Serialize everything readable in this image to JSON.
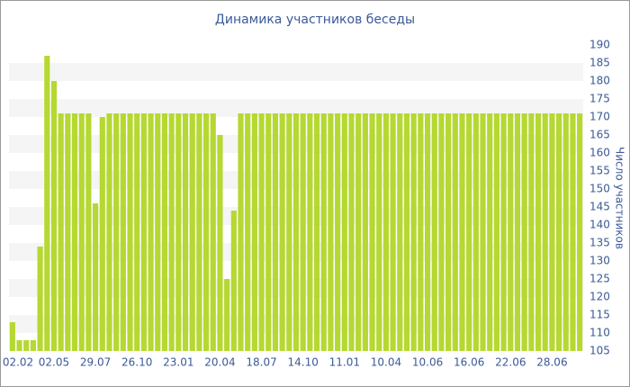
{
  "chart_data": {
    "type": "bar",
    "title": "Динамика участников беседы",
    "y_label": "Число участников",
    "categories": [
      "02.02",
      null,
      null,
      null,
      null,
      null,
      "02.05",
      null,
      null,
      null,
      null,
      null,
      "29.07",
      null,
      null,
      null,
      null,
      null,
      "26.10",
      null,
      null,
      null,
      null,
      null,
      "23.01",
      null,
      null,
      null,
      null,
      null,
      "20.04",
      null,
      null,
      null,
      null,
      null,
      "18.07",
      null,
      null,
      null,
      null,
      null,
      "14.10",
      null,
      null,
      null,
      null,
      null,
      "11.01",
      null,
      null,
      null,
      null,
      null,
      "10.04",
      null,
      null,
      null,
      null,
      null,
      "10.06",
      null,
      null,
      null,
      null,
      null,
      "16.06",
      null,
      null,
      null,
      null,
      null,
      "22.06",
      null,
      null,
      null,
      null,
      null,
      "28.06",
      null,
      null,
      null,
      null
    ],
    "values": [
      113,
      108,
      108,
      108,
      134,
      187,
      180,
      171,
      171,
      171,
      171,
      171,
      146,
      170,
      171,
      171,
      171,
      171,
      171,
      171,
      171,
      171,
      171,
      171,
      171,
      171,
      171,
      171,
      171,
      171,
      165,
      125,
      144,
      171,
      171,
      171,
      171,
      171,
      171,
      171,
      171,
      171,
      171,
      171,
      171,
      171,
      171,
      171,
      171,
      171,
      171,
      171,
      171,
      171,
      171,
      171,
      171,
      171,
      171,
      171,
      171,
      171,
      171,
      171,
      171,
      171,
      171,
      171,
      171,
      171,
      171,
      171,
      171,
      171,
      171,
      171,
      171,
      171,
      171,
      171,
      171,
      171,
      171
    ],
    "color": "#b5d832",
    "ylim": [
      105,
      190
    ],
    "yticks": [
      105,
      110,
      115,
      120,
      125,
      130,
      135,
      140,
      145,
      150,
      155,
      160,
      165,
      170,
      175,
      180,
      185,
      190
    ],
    "grid": true
  }
}
